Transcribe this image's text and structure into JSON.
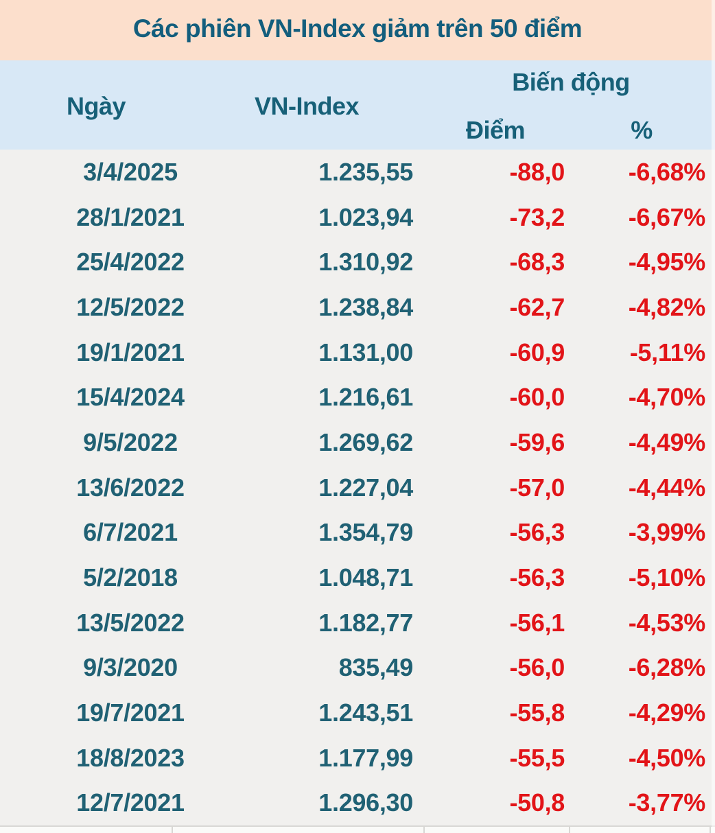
{
  "title": "Các phiên VN-Index giảm trên 50 điểm",
  "header": {
    "date": "Ngày",
    "index": "VN-Index",
    "change_group": "Biến động",
    "points": "Điểm",
    "percent": "%"
  },
  "rows": [
    {
      "date": "3/4/2025",
      "index": "1.235,55",
      "points": "-88,0",
      "percent": "-6,68%"
    },
    {
      "date": "28/1/2021",
      "index": "1.023,94",
      "points": "-73,2",
      "percent": "-6,67%"
    },
    {
      "date": "25/4/2022",
      "index": "1.310,92",
      "points": "-68,3",
      "percent": "-4,95%"
    },
    {
      "date": "12/5/2022",
      "index": "1.238,84",
      "points": "-62,7",
      "percent": "-4,82%"
    },
    {
      "date": "19/1/2021",
      "index": "1.131,00",
      "points": "-60,9",
      "percent": "-5,11%"
    },
    {
      "date": "15/4/2024",
      "index": "1.216,61",
      "points": "-60,0",
      "percent": "-4,70%"
    },
    {
      "date": "9/5/2022",
      "index": "1.269,62",
      "points": "-59,6",
      "percent": "-4,49%"
    },
    {
      "date": "13/6/2022",
      "index": "1.227,04",
      "points": "-57,0",
      "percent": "-4,44%"
    },
    {
      "date": "6/7/2021",
      "index": "1.354,79",
      "points": "-56,3",
      "percent": "-3,99%"
    },
    {
      "date": "5/2/2018",
      "index": "1.048,71",
      "points": "-56,3",
      "percent": "-5,10%"
    },
    {
      "date": "13/5/2022",
      "index": "1.182,77",
      "points": "-56,1",
      "percent": "-4,53%"
    },
    {
      "date": "9/3/2020",
      "index": "835,49",
      "points": "-56,0",
      "percent": "-6,28%"
    },
    {
      "date": "19/7/2021",
      "index": "1.243,51",
      "points": "-55,8",
      "percent": "-4,29%"
    },
    {
      "date": "18/8/2023",
      "index": "1.177,99",
      "points": "-55,5",
      "percent": "-4,50%"
    },
    {
      "date": "12/7/2021",
      "index": "1.296,30",
      "points": "-50,8",
      "percent": "-3,77%"
    }
  ],
  "colors": {
    "title_band_bg": "#fcdfcc",
    "header_band_bg": "#d8e8f6",
    "body_bg": "#f1f0ee",
    "teal_text": "#206174",
    "title_text": "#135e7d",
    "negative_red": "#e21418",
    "gridline": "#d8d7d4"
  },
  "chart_data": {
    "type": "table",
    "title": "Các phiên VN-Index giảm trên 50 điểm",
    "columns": [
      "Ngày",
      "VN-Index",
      "Biến động Điểm",
      "Biến động %"
    ],
    "rows": [
      [
        "3/4/2025",
        "1.235,55",
        "-88,0",
        "-6,68%"
      ],
      [
        "28/1/2021",
        "1.023,94",
        "-73,2",
        "-6,67%"
      ],
      [
        "25/4/2022",
        "1.310,92",
        "-68,3",
        "-4,95%"
      ],
      [
        "12/5/2022",
        "1.238,84",
        "-62,7",
        "-4,82%"
      ],
      [
        "19/1/2021",
        "1.131,00",
        "-60,9",
        "-5,11%"
      ],
      [
        "15/4/2024",
        "1.216,61",
        "-60,0",
        "-4,70%"
      ],
      [
        "9/5/2022",
        "1.269,62",
        "-59,6",
        "-4,49%"
      ],
      [
        "13/6/2022",
        "1.227,04",
        "-57,0",
        "-4,44%"
      ],
      [
        "6/7/2021",
        "1.354,79",
        "-56,3",
        "-3,99%"
      ],
      [
        "5/2/2018",
        "1.048,71",
        "-56,3",
        "-5,10%"
      ],
      [
        "13/5/2022",
        "1.182,77",
        "-56,1",
        "-4,53%"
      ],
      [
        "9/3/2020",
        "835,49",
        "-56,0",
        "-6,28%"
      ],
      [
        "19/7/2021",
        "1.243,51",
        "-55,8",
        "-4,29%"
      ],
      [
        "18/8/2023",
        "1.177,99",
        "-55,5",
        "-4,50%"
      ],
      [
        "12/7/2021",
        "1.296,30",
        "-50,8",
        "-3,77%"
      ]
    ],
    "numeric_rows": [
      {
        "date": "3/4/2025",
        "vn_index": 1235.55,
        "change_points": -88.0,
        "change_percent": -6.68
      },
      {
        "date": "28/1/2021",
        "vn_index": 1023.94,
        "change_points": -73.2,
        "change_percent": -6.67
      },
      {
        "date": "25/4/2022",
        "vn_index": 1310.92,
        "change_points": -68.3,
        "change_percent": -4.95
      },
      {
        "date": "12/5/2022",
        "vn_index": 1238.84,
        "change_points": -62.7,
        "change_percent": -4.82
      },
      {
        "date": "19/1/2021",
        "vn_index": 1131.0,
        "change_points": -60.9,
        "change_percent": -5.11
      },
      {
        "date": "15/4/2024",
        "vn_index": 1216.61,
        "change_points": -60.0,
        "change_percent": -4.7
      },
      {
        "date": "9/5/2022",
        "vn_index": 1269.62,
        "change_points": -59.6,
        "change_percent": -4.49
      },
      {
        "date": "13/6/2022",
        "vn_index": 1227.04,
        "change_points": -57.0,
        "change_percent": -4.44
      },
      {
        "date": "6/7/2021",
        "vn_index": 1354.79,
        "change_points": -56.3,
        "change_percent": -3.99
      },
      {
        "date": "5/2/2018",
        "vn_index": 1048.71,
        "change_points": -56.3,
        "change_percent": -5.1
      },
      {
        "date": "13/5/2022",
        "vn_index": 1182.77,
        "change_points": -56.1,
        "change_percent": -4.53
      },
      {
        "date": "9/3/2020",
        "vn_index": 835.49,
        "change_points": -56.0,
        "change_percent": -6.28
      },
      {
        "date": "19/7/2021",
        "vn_index": 1243.51,
        "change_points": -55.8,
        "change_percent": -4.29
      },
      {
        "date": "18/8/2023",
        "vn_index": 1177.99,
        "change_points": -55.5,
        "change_percent": -4.5
      },
      {
        "date": "12/7/2021",
        "vn_index": 1296.3,
        "change_points": -50.8,
        "change_percent": -3.77
      }
    ]
  }
}
